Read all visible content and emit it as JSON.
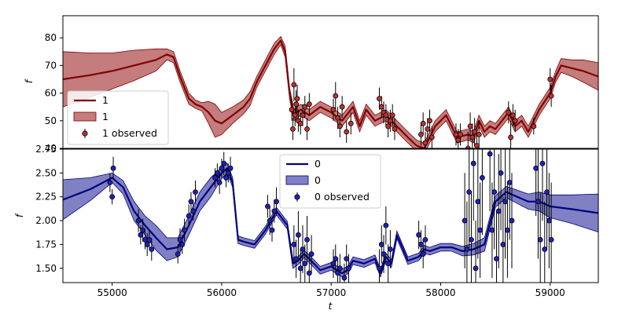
{
  "chart_data": [
    {
      "type": "line",
      "panel": "top",
      "xlabel": "",
      "ylabel": "f",
      "xlim": [
        54550,
        59440
      ],
      "ylim": [
        40,
        88
      ],
      "yticks": [
        40,
        50,
        60,
        70,
        80
      ],
      "xticks": [],
      "grid": false,
      "legend_placement": "lower-left",
      "colors": {
        "line": "#800000",
        "band": "#b05050",
        "marker": "#c03030"
      },
      "legend": [
        "1",
        "1",
        "1 observed"
      ],
      "series": [
        {
          "kind": "mean",
          "name": "1",
          "x": [
            54550,
            54800,
            55000,
            55200,
            55400,
            55500,
            55560,
            55620,
            55700,
            55760,
            55820,
            55880,
            55940,
            56000,
            56100,
            56200,
            56260,
            56320,
            56400,
            56480,
            56540,
            56580,
            56620,
            56660,
            56720,
            56800,
            56900,
            57000,
            57100,
            57200,
            57260,
            57320,
            57400,
            57500,
            57600,
            57700,
            57780,
            57850,
            57950,
            58050,
            58150,
            58250,
            58300,
            58350,
            58400,
            58450,
            58500,
            58560,
            58620,
            58680,
            58740,
            58800,
            58900,
            59000,
            59050,
            59100,
            59200,
            59300,
            59440
          ],
          "y": [
            65,
            66.5,
            68,
            70,
            72,
            74,
            73,
            66,
            58,
            56,
            55,
            53,
            50,
            49,
            52,
            55,
            58,
            64,
            70,
            76,
            79,
            75,
            60,
            52,
            54,
            52,
            55,
            53,
            50,
            55,
            48,
            54,
            50,
            52,
            48,
            44,
            41,
            40,
            48,
            52,
            44,
            45,
            44,
            50,
            46,
            48,
            47,
            50,
            53,
            48,
            50,
            46,
            54,
            60,
            66,
            70,
            69,
            68,
            66
          ]
        },
        {
          "kind": "band",
          "name": "1",
          "x": [
            54550,
            54800,
            55000,
            55200,
            55400,
            55500,
            55560,
            55620,
            55700,
            55760,
            55820,
            55880,
            55940,
            56000,
            56100,
            56200,
            56260,
            56320,
            56400,
            56480,
            56540,
            56580,
            56620,
            56660,
            56720,
            56800,
            56900,
            57000,
            57100,
            57200,
            57260,
            57320,
            57400,
            57500,
            57600,
            57700,
            57780,
            57850,
            57950,
            58050,
            58150,
            58250,
            58300,
            58350,
            58400,
            58450,
            58500,
            58560,
            58620,
            58680,
            58740,
            58800,
            58900,
            59000,
            59050,
            59100,
            59200,
            59300,
            59440
          ],
          "upper": [
            75,
            74.5,
            74.5,
            75.5,
            76,
            76,
            75,
            68,
            60,
            57.5,
            56.5,
            57,
            56,
            53,
            55,
            57.5,
            60.5,
            66,
            72,
            78,
            80.5,
            77,
            62,
            54,
            56,
            54,
            57,
            55,
            52,
            57,
            50,
            56,
            52,
            54,
            50,
            46,
            43,
            42,
            50,
            54,
            46,
            47,
            46,
            52,
            48,
            50,
            49,
            52,
            55,
            50,
            52,
            48,
            56,
            62,
            68,
            72.5,
            72,
            72,
            71
          ]
        }
      ],
      "observed": {
        "name": "1 observed",
        "x": [
          56640,
          56650,
          56660,
          56670,
          56680,
          56690,
          56700,
          56720,
          56740,
          56760,
          56780,
          56800,
          57020,
          57040,
          57060,
          57080,
          57100,
          57140,
          57180,
          57440,
          57460,
          57480,
          57500,
          57520,
          57540,
          57560,
          57580,
          57820,
          57840,
          57860,
          57880,
          57900,
          57920,
          58140,
          58160,
          58180,
          58250,
          58270,
          58290,
          58310,
          58330,
          58350,
          58620,
          58640,
          58660,
          58680,
          58850,
          59000,
          59010
        ],
        "y": [
          54,
          47,
          63,
          52,
          56,
          58,
          50,
          49,
          52,
          55,
          47,
          56,
          54,
          59,
          51,
          48,
          55,
          46,
          49,
          58,
          55,
          53,
          52,
          48,
          50,
          52,
          47,
          45,
          49,
          42,
          47,
          50,
          44,
          45,
          43,
          45,
          40,
          48,
          44,
          46,
          41,
          45,
          53,
          44,
          52,
          50,
          48,
          65,
          59
        ],
        "err": [
          4,
          4,
          6,
          4,
          5,
          5,
          4,
          4,
          4,
          4,
          4,
          4,
          4,
          5,
          4,
          4,
          4,
          4,
          4,
          4,
          4,
          4,
          4,
          4,
          4,
          4,
          4,
          4,
          4,
          4,
          4,
          4,
          4,
          4,
          4,
          4,
          6,
          5,
          5,
          5,
          5,
          5,
          4,
          6,
          4,
          4,
          3,
          4,
          4
        ]
      }
    },
    {
      "type": "line",
      "panel": "bottom",
      "xlabel": "t",
      "ylabel": "f",
      "xlim": [
        54550,
        59440
      ],
      "ylim": [
        1.35,
        2.75
      ],
      "yticks": [
        1.5,
        1.75,
        2.0,
        2.25,
        2.5,
        2.75
      ],
      "ytick_labels": [
        "1.50",
        "1.75",
        "2.00",
        "2.25",
        "2.50",
        "2.75"
      ],
      "xticks": [
        55000,
        56000,
        57000,
        58000,
        59000
      ],
      "grid": false,
      "legend_placement": "upper-center",
      "colors": {
        "line": "#00007f",
        "band": "#5555b0",
        "marker": "#2020c0"
      },
      "legend": [
        "0",
        "0",
        "0 observed"
      ],
      "series": [
        {
          "kind": "mean",
          "name": "0",
          "x": [
            54550,
            54800,
            55000,
            55100,
            55200,
            55300,
            55400,
            55500,
            55600,
            55700,
            55800,
            55900,
            56000,
            56050,
            56100,
            56150,
            56200,
            56300,
            56400,
            56500,
            56600,
            56650,
            56700,
            56750,
            56800,
            56900,
            57000,
            57100,
            57150,
            57200,
            57300,
            57400,
            57450,
            57500,
            57550,
            57600,
            57700,
            57800,
            57850,
            57900,
            58000,
            58100,
            58200,
            58300,
            58400,
            58500,
            58600,
            58700,
            58800,
            58900,
            59000,
            59200,
            59440
          ],
          "y": [
            2.22,
            2.33,
            2.45,
            2.35,
            2.1,
            1.95,
            1.82,
            1.7,
            1.72,
            1.95,
            2.2,
            2.35,
            2.5,
            2.55,
            2.4,
            1.8,
            1.78,
            1.75,
            1.9,
            2.1,
            1.95,
            1.55,
            1.58,
            1.65,
            1.6,
            1.48,
            1.52,
            1.45,
            1.48,
            1.58,
            1.55,
            1.6,
            1.45,
            1.62,
            1.55,
            1.85,
            1.58,
            1.62,
            1.7,
            1.68,
            1.72,
            1.72,
            1.68,
            1.7,
            1.75,
            2.2,
            2.3,
            2.25,
            2.2,
            2.2,
            2.15,
            2.12,
            2.08
          ]
        },
        {
          "kind": "band",
          "name": "0",
          "x": [
            54550,
            54800,
            55000,
            55100,
            55200,
            55300,
            55400,
            55500,
            55600,
            55700,
            55800,
            55900,
            56000,
            56050,
            56100,
            56150,
            56200,
            56300,
            56400,
            56500,
            56600,
            56650,
            56700,
            56750,
            56800,
            56900,
            57000,
            57100,
            57150,
            57200,
            57300,
            57400,
            57450,
            57500,
            57550,
            57600,
            57700,
            57800,
            57850,
            57900,
            58000,
            58100,
            58200,
            58300,
            58400,
            58500,
            58600,
            58700,
            58800,
            58900,
            59000,
            59200,
            59440
          ],
          "upper": [
            2.43,
            2.45,
            2.5,
            2.42,
            2.2,
            2.05,
            1.95,
            1.82,
            1.82,
            2.05,
            2.3,
            2.45,
            2.56,
            2.6,
            2.45,
            1.84,
            1.82,
            1.79,
            1.94,
            2.14,
            1.99,
            1.6,
            1.62,
            1.69,
            1.64,
            1.52,
            1.56,
            1.49,
            1.52,
            1.62,
            1.59,
            1.64,
            1.49,
            1.66,
            1.59,
            1.89,
            1.62,
            1.66,
            1.74,
            1.72,
            1.76,
            1.76,
            1.73,
            1.76,
            1.82,
            2.26,
            2.36,
            2.32,
            2.28,
            2.3,
            2.27,
            2.27,
            2.28
          ]
        }
      ],
      "observed": {
        "name": "0 observed",
        "x": [
          54980,
          55000,
          55010,
          55240,
          55260,
          55280,
          55300,
          55320,
          55340,
          55360,
          55600,
          55620,
          55640,
          55660,
          55700,
          55720,
          55740,
          55760,
          55940,
          55960,
          55980,
          56000,
          56020,
          56040,
          56060,
          56080,
          56420,
          56440,
          56460,
          56480,
          56500,
          56660,
          56680,
          56700,
          56720,
          56740,
          56760,
          56780,
          56800,
          56820,
          57020,
          57040,
          57060,
          57080,
          57120,
          57140,
          57160,
          57440,
          57460,
          57480,
          57500,
          57520,
          57540,
          57800,
          57820,
          57840,
          57860,
          58220,
          58240,
          58260,
          58280,
          58300,
          58320,
          58340,
          58360,
          58380,
          58450,
          58470,
          58490,
          58510,
          58530,
          58550,
          58570,
          58590,
          58610,
          58630,
          58650,
          58870,
          58890,
          58910,
          58930,
          58950,
          58970,
          58990,
          59010
        ],
        "y": [
          2.4,
          2.25,
          2.55,
          2.0,
          1.85,
          1.9,
          1.8,
          1.75,
          1.8,
          1.7,
          1.65,
          1.8,
          1.75,
          1.9,
          2.05,
          2.2,
          2.1,
          2.3,
          2.45,
          2.5,
          2.4,
          2.55,
          2.6,
          2.45,
          2.5,
          2.55,
          2.15,
          2.0,
          1.9,
          2.1,
          2.2,
          1.75,
          1.6,
          1.85,
          1.5,
          1.7,
          1.55,
          1.8,
          1.45,
          1.65,
          1.55,
          1.6,
          1.45,
          1.5,
          1.4,
          1.6,
          1.5,
          1.5,
          1.75,
          1.65,
          1.95,
          1.55,
          1.7,
          1.85,
          1.75,
          1.65,
          1.8,
          2.0,
          1.7,
          2.3,
          1.8,
          2.6,
          1.5,
          2.2,
          1.9,
          2.45,
          2.7,
          1.9,
          2.3,
          1.6,
          2.1,
          2.5,
          1.75,
          2.2,
          1.9,
          2.4,
          2.0,
          2.55,
          2.2,
          1.8,
          2.6,
          1.7,
          2.3,
          2.0,
          1.8
        ],
        "err": [
          0.1,
          0.08,
          0.12,
          0.12,
          0.1,
          0.12,
          0.1,
          0.12,
          0.1,
          0.12,
          0.1,
          0.12,
          0.1,
          0.12,
          0.12,
          0.1,
          0.1,
          0.12,
          0.1,
          0.1,
          0.12,
          0.1,
          0.12,
          0.1,
          0.1,
          0.12,
          0.12,
          0.15,
          0.12,
          0.12,
          0.15,
          0.2,
          0.2,
          0.25,
          0.2,
          0.25,
          0.2,
          0.25,
          0.2,
          0.2,
          0.15,
          0.15,
          0.15,
          0.15,
          0.15,
          0.15,
          0.15,
          0.2,
          0.2,
          0.2,
          0.2,
          0.2,
          0.2,
          0.15,
          0.15,
          0.15,
          0.15,
          0.5,
          0.5,
          0.6,
          0.5,
          0.6,
          0.5,
          0.6,
          0.5,
          0.6,
          0.6,
          0.5,
          0.6,
          0.5,
          0.6,
          0.6,
          0.5,
          0.6,
          0.5,
          0.6,
          0.5,
          0.5,
          0.6,
          0.5,
          0.6,
          0.5,
          0.6,
          0.5,
          0.6
        ]
      }
    }
  ]
}
